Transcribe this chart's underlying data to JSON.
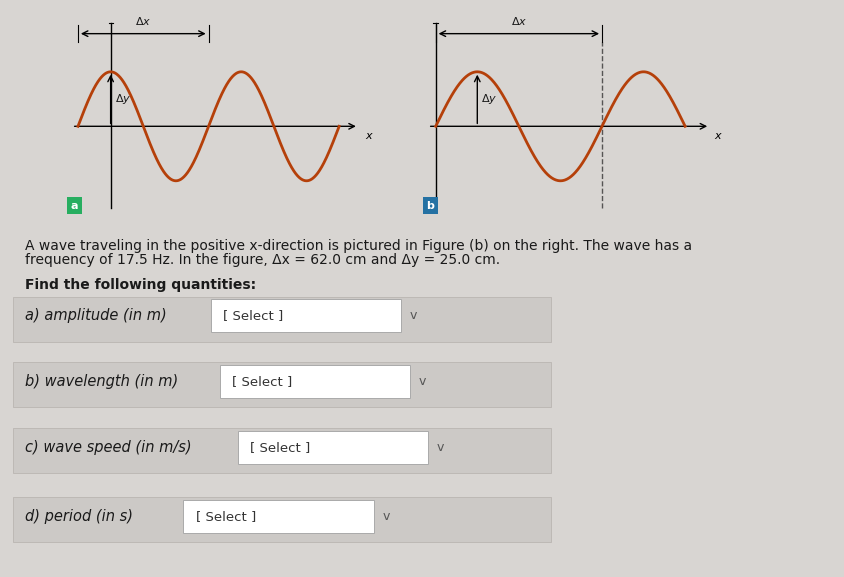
{
  "bg_color": "#d8d5d2",
  "wave_panel_bg": "#f0eeec",
  "text_area_bg": "#d8d5d2",
  "wave_color": "#b5400a",
  "axis_color": "#000000",
  "arrow_color": "#000000",
  "label_a_bg": "#27ae60",
  "label_b_bg": "#2471a3",
  "separator_color": "#7a9a5a",
  "main_text_line1": "A wave traveling in the positive x-direction is pictured in Figure (b) on the right. The wave has a",
  "main_text_line2": "frequency of 17.5 Hz. In the figure, Δx = 62.0 cm and Δy = 25.0 cm.",
  "find_text": "Find the following quantities:",
  "items": [
    {
      "label": "a) amplitude (in m)",
      "select_text": "[ Select ]"
    },
    {
      "label": "b) wavelength (in m)",
      "select_text": "[ Select ]"
    },
    {
      "label": "c) wave speed (in m/s)",
      "select_text": "[ Select ]"
    },
    {
      "label": "d) period (in s)",
      "select_text": "[ Select ]"
    }
  ],
  "select_box_bg": "#ffffff",
  "select_box_border": "#aaaaaa",
  "row_bg": "#d8d5d2",
  "text_color": "#1a1a1a",
  "chevron": "v"
}
